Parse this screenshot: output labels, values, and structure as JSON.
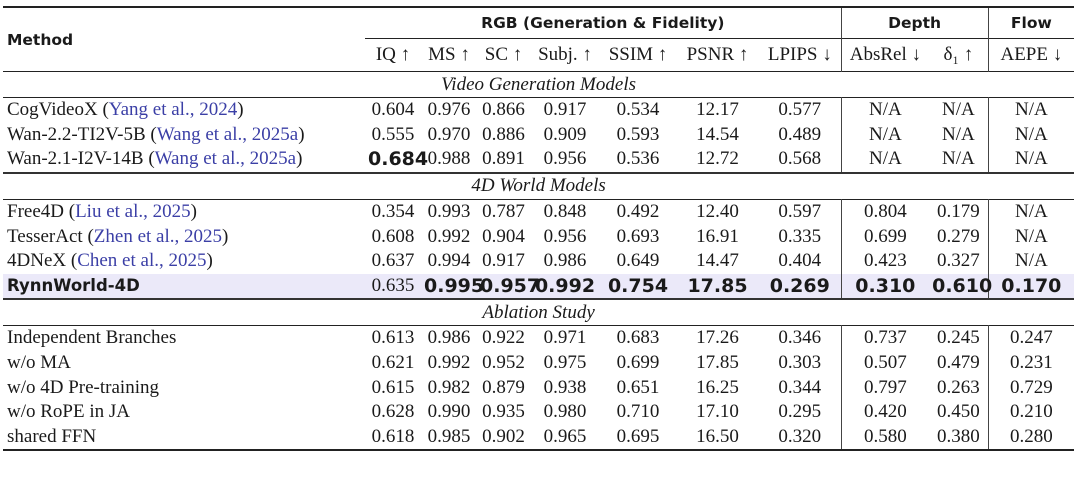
{
  "header": {
    "method": "Method",
    "groups": {
      "rgb": "RGB (Generation & Fidelity)",
      "depth": "Depth",
      "flow": "Flow"
    },
    "metrics": [
      "IQ ↑",
      "MS ↑",
      "SC ↑",
      "Subj. ↑",
      "SSIM ↑",
      "PSNR ↑",
      "LPIPS ↓",
      "AbsRel ↓",
      "δ₁ ↑",
      "AEPE ↓"
    ]
  },
  "sections": [
    {
      "title": "Video Generation Models",
      "rows": [
        {
          "name": "CogVideoX",
          "cite": "Yang et al., 2024",
          "values": [
            "0.604",
            "0.976",
            "0.866",
            "0.917",
            "0.534",
            "12.17",
            "0.577",
            "N/A",
            "N/A",
            "N/A"
          ],
          "bold": []
        },
        {
          "name": "Wan-2.2-TI2V-5B",
          "cite": "Wang et al., 2025a",
          "values": [
            "0.555",
            "0.970",
            "0.886",
            "0.909",
            "0.593",
            "14.54",
            "0.489",
            "N/A",
            "N/A",
            "N/A"
          ],
          "bold": []
        },
        {
          "name": "Wan-2.1-I2V-14B",
          "cite": "Wang et al., 2025a",
          "values": [
            "0.684",
            "0.988",
            "0.891",
            "0.956",
            "0.536",
            "12.72",
            "0.568",
            "N/A",
            "N/A",
            "N/A"
          ],
          "bold": [
            0
          ]
        }
      ]
    },
    {
      "title": "4D World Models",
      "rows": [
        {
          "name": "Free4D",
          "cite": "Liu et al., 2025",
          "values": [
            "0.354",
            "0.993",
            "0.787",
            "0.848",
            "0.492",
            "12.40",
            "0.597",
            "0.804",
            "0.179",
            "N/A"
          ],
          "bold": []
        },
        {
          "name": "TesserAct",
          "cite": "Zhen et al., 2025",
          "values": [
            "0.608",
            "0.992",
            "0.904",
            "0.956",
            "0.693",
            "16.91",
            "0.335",
            "0.699",
            "0.279",
            "N/A"
          ],
          "bold": []
        },
        {
          "name": "4DNeX",
          "cite": "Chen et al., 2025",
          "values": [
            "0.637",
            "0.994",
            "0.917",
            "0.986",
            "0.649",
            "14.47",
            "0.404",
            "0.423",
            "0.327",
            "N/A"
          ],
          "bold": []
        },
        {
          "name": "RynnWorld-4D",
          "cite": "",
          "highlight": true,
          "values": [
            "0.635",
            "0.995",
            "0.957",
            "0.992",
            "0.754",
            "17.85",
            "0.269",
            "0.310",
            "0.610",
            "0.170"
          ],
          "bold": [
            1,
            2,
            3,
            4,
            5,
            6,
            7,
            8,
            9
          ]
        }
      ]
    },
    {
      "title": "Ablation Study",
      "rows": [
        {
          "name": "Independent Branches",
          "cite": "",
          "values": [
            "0.613",
            "0.986",
            "0.922",
            "0.971",
            "0.683",
            "17.26",
            "0.346",
            "0.737",
            "0.245",
            "0.247"
          ],
          "bold": []
        },
        {
          "name": "w/o MA",
          "cite": "",
          "values": [
            "0.621",
            "0.992",
            "0.952",
            "0.975",
            "0.699",
            "17.85",
            "0.303",
            "0.507",
            "0.479",
            "0.231"
          ],
          "bold": []
        },
        {
          "name": "w/o 4D Pre-training",
          "cite": "",
          "values": [
            "0.615",
            "0.982",
            "0.879",
            "0.938",
            "0.651",
            "16.25",
            "0.344",
            "0.797",
            "0.263",
            "0.729"
          ],
          "bold": []
        },
        {
          "name": "w/o RoPE in JA",
          "cite": "",
          "values": [
            "0.628",
            "0.990",
            "0.935",
            "0.980",
            "0.710",
            "17.10",
            "0.295",
            "0.420",
            "0.450",
            "0.210"
          ],
          "bold": []
        },
        {
          "name": "shared FFN",
          "cite": "",
          "values": [
            "0.618",
            "0.985",
            "0.902",
            "0.965",
            "0.695",
            "16.50",
            "0.320",
            "0.580",
            "0.380",
            "0.280"
          ],
          "bold": []
        }
      ]
    }
  ]
}
